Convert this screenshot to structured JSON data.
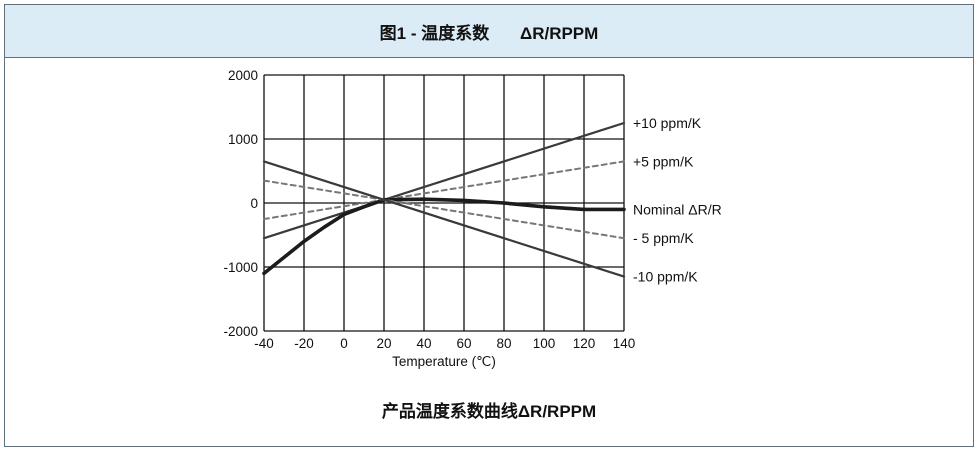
{
  "header": {
    "title": "图1 - 温度系数",
    "unit": "ΔR/RPPM"
  },
  "caption": "产品温度系数曲线ΔR/RPPM",
  "chart_data": {
    "type": "line",
    "xlabel": "Temperature (℃)",
    "ylabel": "",
    "xlim": [
      -40,
      140
    ],
    "ylim": [
      -2000,
      2000
    ],
    "xticks": [
      "-40",
      "-20",
      "0",
      "20",
      "40",
      "60",
      "80",
      "100",
      "120",
      "140"
    ],
    "yticks": [
      "2000",
      "1000",
      "0",
      "-1000",
      "-2000"
    ],
    "grid": true,
    "series": [
      {
        "name": "+10 ppm/K",
        "style": "solid",
        "color": "#3a3a3a",
        "x": [
          -40,
          140
        ],
        "y": [
          -550,
          1250
        ]
      },
      {
        "name": "+5 ppm/K",
        "style": "dashed",
        "color": "#777777",
        "x": [
          -40,
          140
        ],
        "y": [
          -250,
          650
        ]
      },
      {
        "name": "Nominal ΔR/R",
        "style": "bold",
        "color": "#1c1c1c",
        "x": [
          -40,
          -30,
          -20,
          -10,
          0,
          10,
          20,
          40,
          60,
          80,
          100,
          120,
          140
        ],
        "y": [
          -1100,
          -850,
          -600,
          -380,
          -180,
          -60,
          50,
          60,
          40,
          0,
          -60,
          -100,
          -100
        ]
      },
      {
        "name": "- 5 ppm/K",
        "style": "dashed",
        "color": "#777777",
        "x": [
          -40,
          140
        ],
        "y": [
          350,
          -550
        ]
      },
      {
        "name": "-10 ppm/K",
        "style": "solid",
        "color": "#3a3a3a",
        "x": [
          -40,
          140
        ],
        "y": [
          650,
          -1150
        ]
      }
    ]
  }
}
